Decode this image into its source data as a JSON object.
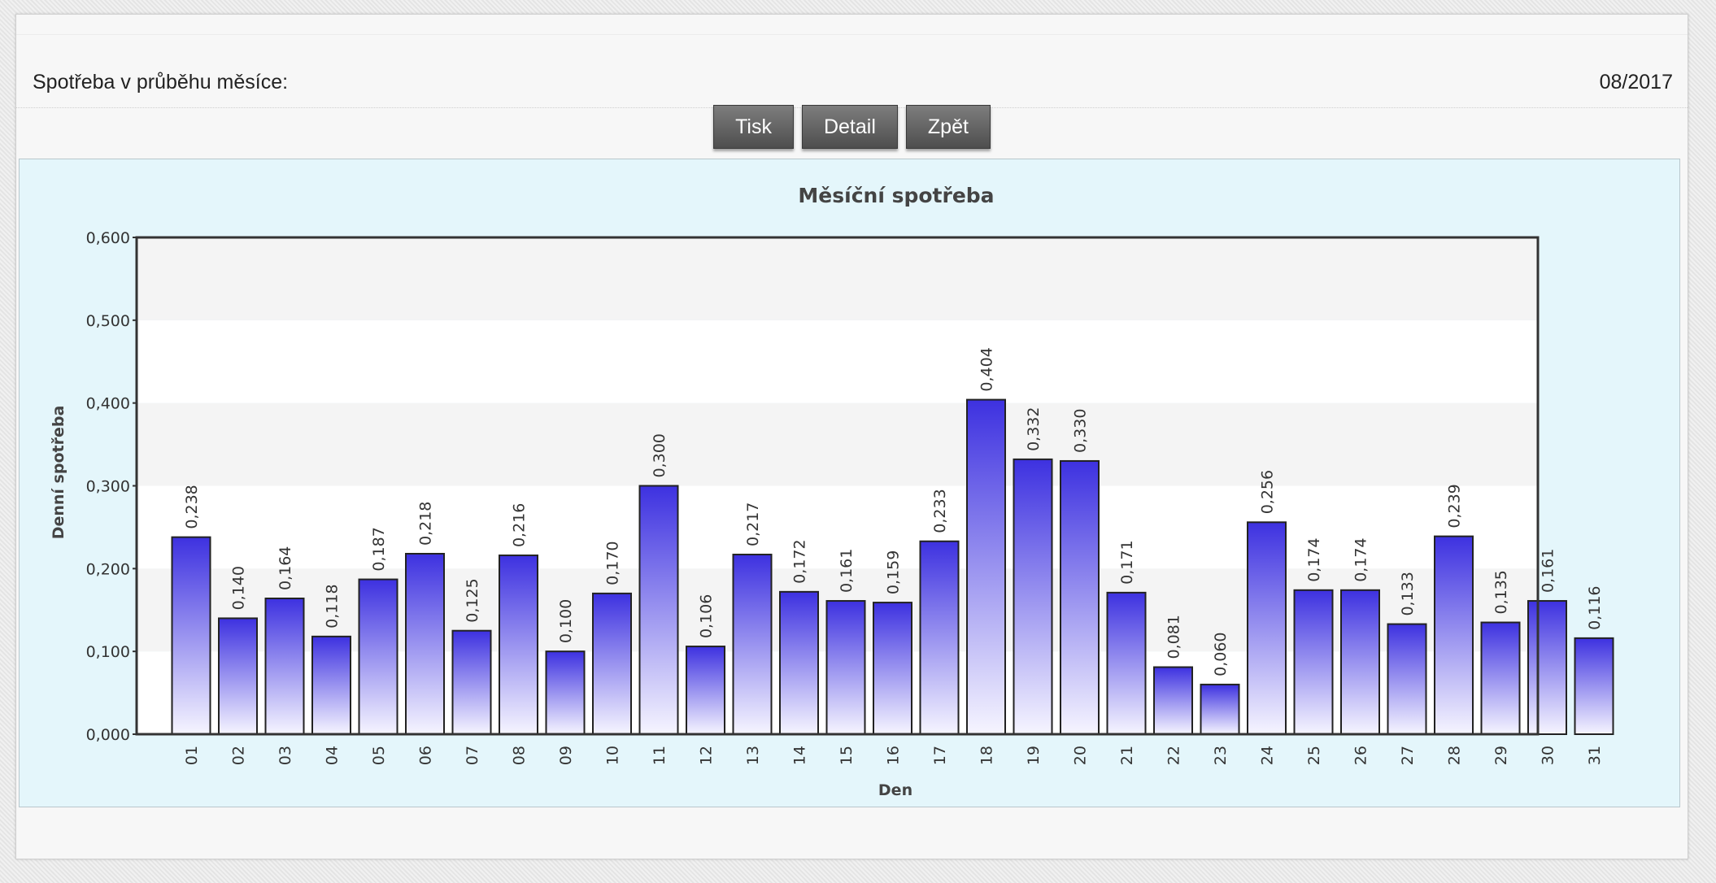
{
  "header": {
    "label": "Spotřeba v průběhu měsíce:",
    "period": "08/2017"
  },
  "toolbar": {
    "print_label": "Tisk",
    "detail_label": "Detail",
    "back_label": "Zpět"
  },
  "chart_data": {
    "type": "bar",
    "title": "Měsíční spotřeba",
    "xlabel": "Den",
    "ylabel": "Denní spotřeba",
    "ylim": [
      0,
      0.6
    ],
    "yticks": [
      "0,000",
      "0,100",
      "0,200",
      "0,300",
      "0,400",
      "0,500",
      "0,600"
    ],
    "categories": [
      "01",
      "02",
      "03",
      "04",
      "05",
      "06",
      "07",
      "08",
      "09",
      "10",
      "11",
      "12",
      "13",
      "14",
      "15",
      "16",
      "17",
      "18",
      "19",
      "20",
      "21",
      "22",
      "23",
      "24",
      "25",
      "26",
      "27",
      "28",
      "29",
      "30",
      "31"
    ],
    "values": [
      0.238,
      0.14,
      0.164,
      0.118,
      0.187,
      0.218,
      0.125,
      0.216,
      0.1,
      0.17,
      0.3,
      0.106,
      0.217,
      0.172,
      0.161,
      0.159,
      0.233,
      0.404,
      0.332,
      0.33,
      0.171,
      0.081,
      0.06,
      0.256,
      0.174,
      0.174,
      0.133,
      0.239,
      0.135,
      0.161,
      0.116
    ],
    "value_labels": [
      "0,238",
      "0,140",
      "0,164",
      "0,118",
      "0,187",
      "0,218",
      "0,125",
      "0,216",
      "0,100",
      "0,170",
      "0,300",
      "0,106",
      "0,217",
      "0,172",
      "0,161",
      "0,159",
      "0,233",
      "0,404",
      "0,332",
      "0,330",
      "0,171",
      "0,081",
      "0,060",
      "0,256",
      "0,174",
      "0,174",
      "0,133",
      "0,239",
      "0,135",
      "0,161",
      "0,116"
    ],
    "grid": "alternating-bands",
    "bar_color_top": "#3d31e0",
    "bar_color_bottom": "#f6f5ff"
  }
}
